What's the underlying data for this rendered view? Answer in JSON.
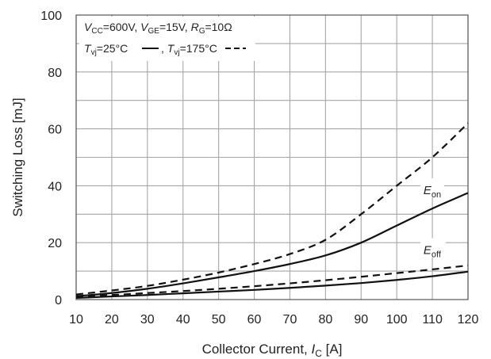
{
  "chart_data": {
    "type": "line",
    "title": "",
    "xlabel": "Collector Current, I_C [A]",
    "xlabel_parts": {
      "pre": "Collector Current, ",
      "var": "I",
      "sub": "C",
      "post": " [A]"
    },
    "ylabel": "Switching Loss [mJ]",
    "xlim": [
      10,
      120
    ],
    "ylim": [
      0,
      100
    ],
    "xticks": [
      10,
      20,
      30,
      40,
      50,
      60,
      70,
      80,
      90,
      100,
      110,
      120
    ],
    "yticks": [
      0,
      20,
      40,
      60,
      80,
      100
    ],
    "grid": true,
    "legend": {
      "placement": "top-left",
      "line1": {
        "vcc": "=600V, ",
        "vge": "=15V, ",
        "rg": "=10Ω"
      },
      "line2": {
        "t25": "=25°C ",
        "sep": ", ",
        "t175": "=175°C "
      }
    },
    "labels": {
      "eon_sub": "on",
      "eoff_sub": "off"
    },
    "series": [
      {
        "curve": "Eon",
        "temp": "25°C",
        "dash": false,
        "x": [
          10,
          20,
          30,
          40,
          50,
          60,
          70,
          80,
          90,
          100,
          110,
          120
        ],
        "y": [
          1.2,
          2.3,
          3.8,
          5.7,
          7.8,
          10.0,
          12.5,
          15.5,
          20.0,
          26.0,
          32.0,
          37.5
        ]
      },
      {
        "curve": "Eon",
        "temp": "175°C",
        "dash": true,
        "x": [
          10,
          20,
          30,
          40,
          50,
          60,
          70,
          80,
          90,
          100,
          110,
          120
        ],
        "y": [
          1.8,
          3.2,
          4.8,
          7.0,
          9.5,
          12.5,
          16.0,
          21.0,
          30.0,
          40.0,
          50.0,
          62.0
        ]
      },
      {
        "curve": "Eoff",
        "temp": "25°C",
        "dash": false,
        "x": [
          10,
          20,
          30,
          40,
          50,
          60,
          70,
          80,
          90,
          100,
          110,
          120
        ],
        "y": [
          0.6,
          1.1,
          1.6,
          2.2,
          2.8,
          3.4,
          4.1,
          4.9,
          5.8,
          6.9,
          8.2,
          9.8
        ]
      },
      {
        "curve": "Eoff",
        "temp": "175°C",
        "dash": true,
        "x": [
          10,
          20,
          30,
          40,
          50,
          60,
          70,
          80,
          90,
          100,
          110,
          120
        ],
        "y": [
          1.0,
          1.6,
          2.3,
          3.0,
          3.8,
          4.7,
          5.7,
          6.8,
          8.0,
          9.3,
          10.6,
          12.0
        ]
      }
    ]
  }
}
